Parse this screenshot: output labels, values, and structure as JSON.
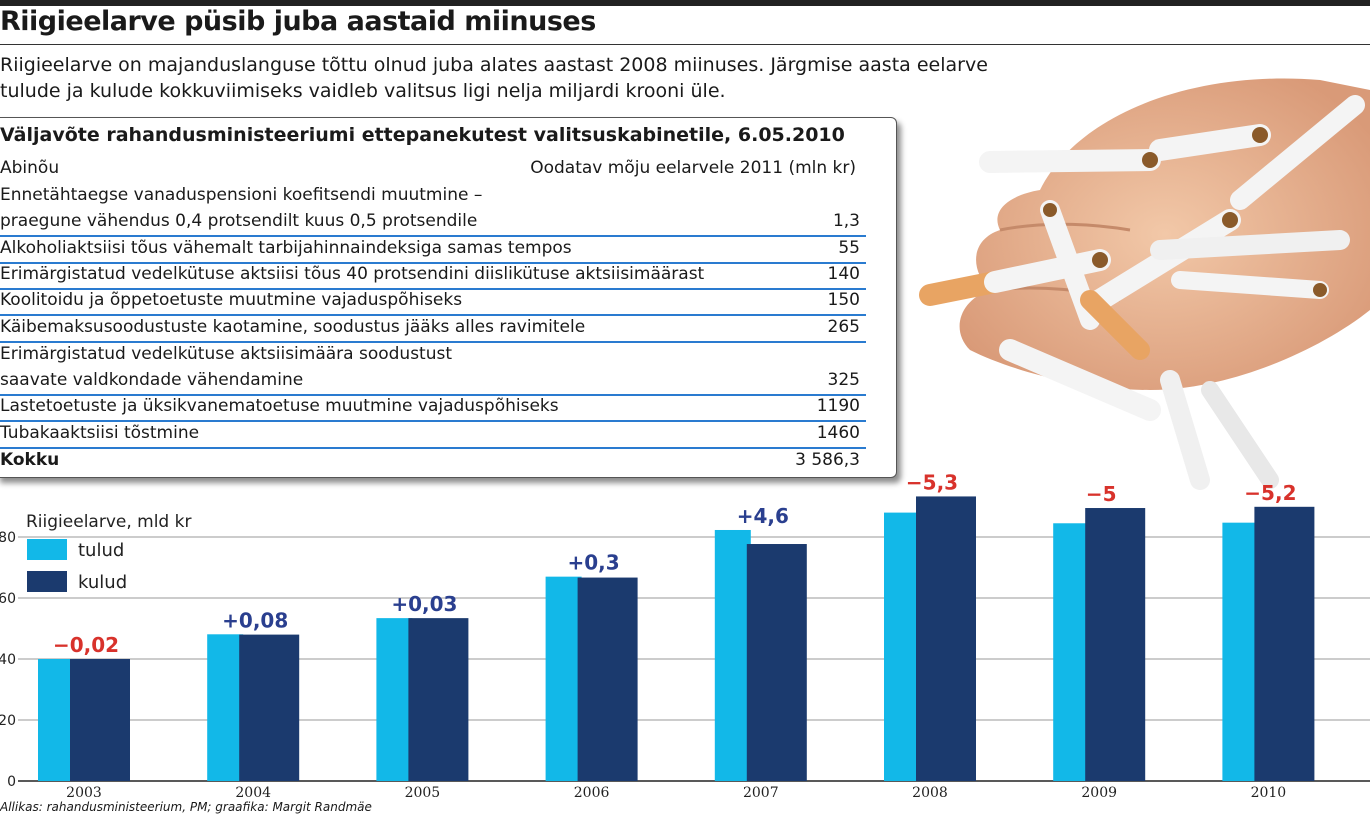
{
  "headline": "Riigieelarve püsib juba aastaid miinuses",
  "intro": {
    "line1": "Riigieelarve on majanduslanguse tõttu olnud juba alates aastast 2008 miinuses. Järgmise aasta eelarve",
    "line2": "tulude ja kulude kokkuviimiseks vaidleb valitsus ligi nelja miljardi krooni üle."
  },
  "table": {
    "title": "Väljavõte rahandusministeeriumi ettepanekutest valitsuskabinetile, 6.05.2010",
    "col_measure": "Abinõu",
    "col_effect": "Oodatav mõju eelarvele 2011 (mln kr)",
    "rows": [
      {
        "label_line1": "Ennetähtaegse vanaduspensioni koefitsendi muutmine –",
        "label_line2": "praegune vähendus 0,4 protsendilt kuus 0,5 protsendile",
        "value": "1,3"
      },
      {
        "label_line1": "Alkoholiaktsiisi tõus vähemalt tarbijahinnaindeksiga samas tempos",
        "value": "55"
      },
      {
        "label_line1": "Erimärgistatud vedelkütuse aktsiisi tõus 40 protsendini diislikütuse aktsiisimäärast",
        "value": "140"
      },
      {
        "label_line1": "Koolitoidu ja õppetoetuste muutmine vajaduspõhiseks",
        "value": "150"
      },
      {
        "label_line1": "Käibemaksusoodustuste kaotamine, soodustus jääks alles ravimitele",
        "value": "265"
      },
      {
        "label_line1": "Erimärgistatud vedelkütuse aktsiisimäära soodustust",
        "label_line2": "saavate valdkondade vähendamine",
        "value": "325"
      },
      {
        "label_line1": "Lastetoetuste ja üksikvanematoetuse muutmine vajaduspõhiseks",
        "value": "1190"
      },
      {
        "label_line1": "Tubakaaktsiisi tõstmine",
        "value": "1460"
      }
    ],
    "total_label": "Kokku",
    "total_value": "3 586,3"
  },
  "chart_data": {
    "type": "bar",
    "ylabel": "Riigieelarve, mld kr",
    "ylim": [
      0,
      95
    ],
    "yticks": [
      0,
      20,
      40,
      60,
      80
    ],
    "grid": true,
    "legend_position": "top-left",
    "categories": [
      "2003",
      "2004",
      "2005",
      "2006",
      "2007",
      "2008",
      "2009",
      "2010"
    ],
    "series": [
      {
        "name": "tulud",
        "color": "#12b8e8",
        "values": [
          40.0,
          48.1,
          53.4,
          67.0,
          82.3,
          88.0,
          84.5,
          84.7
        ]
      },
      {
        "name": "kulud",
        "color": "#1b3a6e",
        "values": [
          40.0,
          48.0,
          53.4,
          66.7,
          77.7,
          93.3,
          89.5,
          89.9
        ]
      }
    ],
    "balance_labels": [
      "−0,02",
      "+0,08",
      "+0,03",
      "+0,3",
      "+4,6",
      "−5,3",
      "−5",
      "−5,2"
    ],
    "balance_colors": [
      "#d8322b",
      "#2a3f8f",
      "#2a3f8f",
      "#2a3f8f",
      "#2a3f8f",
      "#d8322b",
      "#d8322b",
      "#d8322b"
    ]
  },
  "credit": "Allikas: rahandusministeerium, PM; graafika: Margit Randmäe",
  "photo_icon": "cigarettes-in-hand-photo"
}
